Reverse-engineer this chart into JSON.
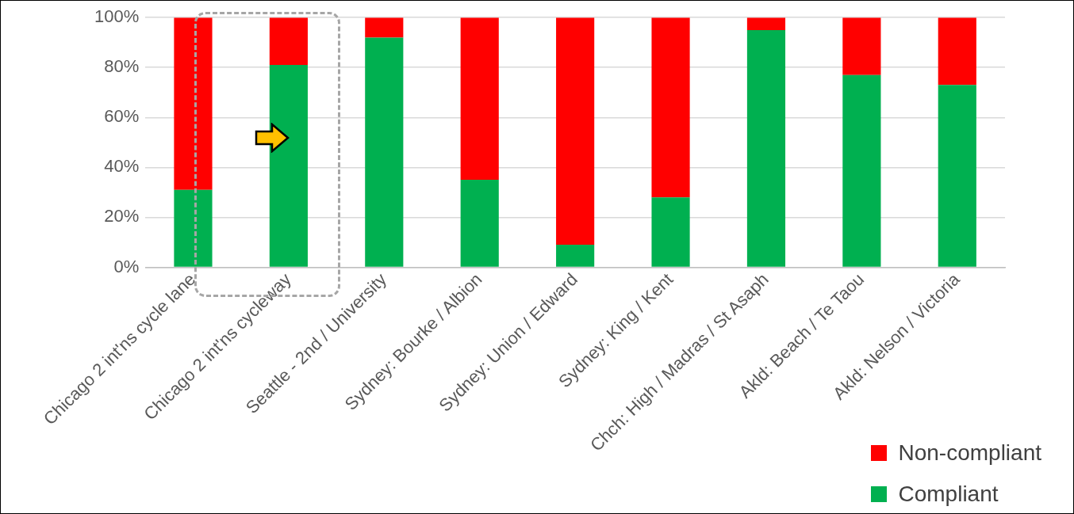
{
  "chart_data": {
    "type": "bar",
    "stacked": true,
    "categories": [
      "Chicago 2 int'ns cycle lane",
      "Chicago 2 int'ns cycleway",
      "Seattle - 2nd / University",
      "Sydney: Bourke / Albion",
      "Sydney: Union / Edward",
      "Sydney: King / Kent",
      "Chch: High / Madras / St Asaph",
      "Akld: Beach / Te Taou",
      "Akld: Nelson / Victoria"
    ],
    "series": [
      {
        "name": "Compliant",
        "color": "#00b050",
        "values": [
          31,
          81,
          92,
          35,
          9,
          28,
          95,
          77,
          73
        ]
      },
      {
        "name": "Non-compliant",
        "color": "#ff0000",
        "values": [
          69,
          19,
          8,
          65,
          91,
          72,
          5,
          23,
          27
        ]
      }
    ],
    "ylim": [
      0,
      100
    ],
    "yticks": [
      {
        "value": 0,
        "label": "0%"
      },
      {
        "value": 20,
        "label": "20%"
      },
      {
        "value": 40,
        "label": "40%"
      },
      {
        "value": 60,
        "label": "60%"
      },
      {
        "value": 80,
        "label": "80%"
      },
      {
        "value": 100,
        "label": "100%"
      }
    ],
    "grid": "y",
    "legend": "bottom right"
  }
}
